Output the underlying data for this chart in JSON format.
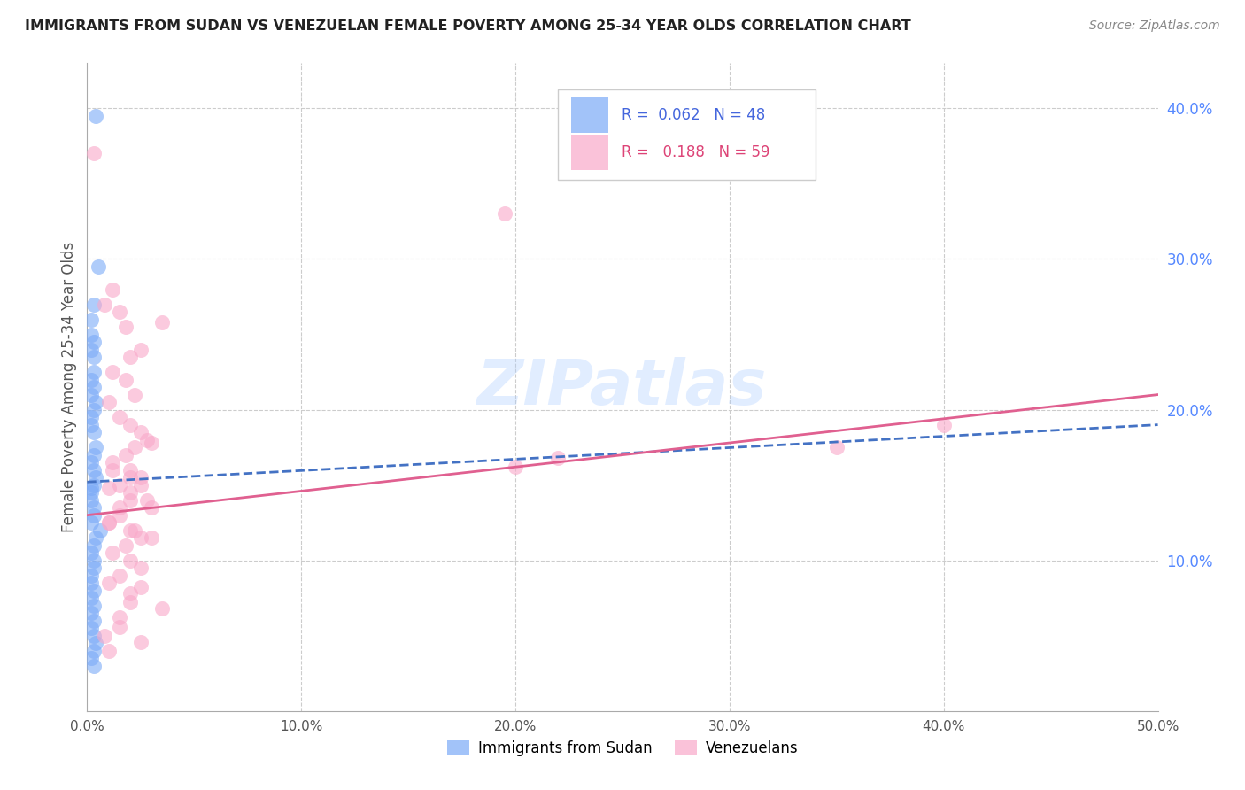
{
  "title": "IMMIGRANTS FROM SUDAN VS VENEZUELAN FEMALE POVERTY AMONG 25-34 YEAR OLDS CORRELATION CHART",
  "source": "Source: ZipAtlas.com",
  "ylabel": "Female Poverty Among 25-34 Year Olds",
  "xlim": [
    0.0,
    0.5
  ],
  "ylim": [
    0.0,
    0.43
  ],
  "ytick_right_vals": [
    0.1,
    0.2,
    0.3,
    0.4
  ],
  "ytick_right_labels": [
    "10.0%",
    "20.0%",
    "30.0%",
    "40.0%"
  ],
  "xtick_vals": [
    0.0,
    0.1,
    0.2,
    0.3,
    0.4,
    0.5
  ],
  "xtick_labels": [
    "0.0%",
    "10.0%",
    "20.0%",
    "30.0%",
    "40.0%",
    "50.0%"
  ],
  "grid_color": "#cccccc",
  "background_color": "#ffffff",
  "watermark": "ZIPatlas",
  "legend_R1": "0.062",
  "legend_N1": "48",
  "legend_R2": "0.188",
  "legend_N2": "59",
  "color_sudan": "#7baaf7",
  "color_venezuela": "#f9a8c9",
  "trendline_sudan_color": "#4472c4",
  "trendline_venezuela_color": "#e06090",
  "trendline_venezuela_style": "-",
  "trendline_sudan_style": "--",
  "sudan_x": [
    0.004,
    0.005,
    0.003,
    0.002,
    0.002,
    0.003,
    0.002,
    0.003,
    0.003,
    0.002,
    0.003,
    0.002,
    0.004,
    0.003,
    0.002,
    0.002,
    0.003,
    0.004,
    0.003,
    0.002,
    0.003,
    0.004,
    0.003,
    0.002,
    0.002,
    0.002,
    0.003,
    0.003,
    0.002,
    0.006,
    0.004,
    0.003,
    0.002,
    0.003,
    0.003,
    0.002,
    0.002,
    0.003,
    0.002,
    0.003,
    0.002,
    0.003,
    0.002,
    0.003,
    0.004,
    0.003,
    0.002,
    0.003
  ],
  "sudan_y": [
    0.395,
    0.295,
    0.27,
    0.26,
    0.25,
    0.245,
    0.24,
    0.235,
    0.225,
    0.22,
    0.215,
    0.21,
    0.205,
    0.2,
    0.195,
    0.19,
    0.185,
    0.175,
    0.17,
    0.165,
    0.16,
    0.155,
    0.15,
    0.148,
    0.145,
    0.14,
    0.135,
    0.13,
    0.125,
    0.12,
    0.115,
    0.11,
    0.105,
    0.1,
    0.095,
    0.09,
    0.085,
    0.08,
    0.075,
    0.07,
    0.065,
    0.06,
    0.055,
    0.05,
    0.045,
    0.04,
    0.035,
    0.03
  ],
  "venezuela_x": [
    0.003,
    0.008,
    0.012,
    0.015,
    0.018,
    0.025,
    0.02,
    0.012,
    0.018,
    0.022,
    0.01,
    0.015,
    0.02,
    0.025,
    0.028,
    0.03,
    0.022,
    0.018,
    0.012,
    0.02,
    0.025,
    0.015,
    0.01,
    0.02,
    0.028,
    0.015,
    0.035,
    0.01,
    0.022,
    0.03,
    0.018,
    0.012,
    0.02,
    0.025,
    0.015,
    0.01,
    0.35,
    0.4,
    0.195,
    0.012,
    0.02,
    0.025,
    0.2,
    0.22,
    0.02,
    0.03,
    0.015,
    0.01,
    0.02,
    0.025,
    0.015,
    0.035,
    0.02,
    0.02,
    0.025,
    0.008,
    0.015,
    0.01,
    0.025
  ],
  "venezuela_y": [
    0.37,
    0.27,
    0.28,
    0.265,
    0.255,
    0.24,
    0.235,
    0.225,
    0.22,
    0.21,
    0.205,
    0.195,
    0.19,
    0.185,
    0.18,
    0.178,
    0.175,
    0.17,
    0.165,
    0.16,
    0.155,
    0.15,
    0.148,
    0.145,
    0.14,
    0.135,
    0.258,
    0.125,
    0.12,
    0.115,
    0.11,
    0.105,
    0.1,
    0.095,
    0.09,
    0.085,
    0.175,
    0.19,
    0.33,
    0.16,
    0.155,
    0.15,
    0.162,
    0.168,
    0.14,
    0.135,
    0.13,
    0.125,
    0.12,
    0.115,
    0.062,
    0.068,
    0.072,
    0.078,
    0.082,
    0.05,
    0.056,
    0.04,
    0.046
  ],
  "trendline_sudan_x0": 0.0,
  "trendline_sudan_x1": 0.5,
  "trendline_sudan_y0": 0.152,
  "trendline_sudan_y1": 0.19,
  "trendline_venezuela_x0": 0.0,
  "trendline_venezuela_x1": 0.5,
  "trendline_venezuela_y0": 0.13,
  "trendline_venezuela_y1": 0.21
}
